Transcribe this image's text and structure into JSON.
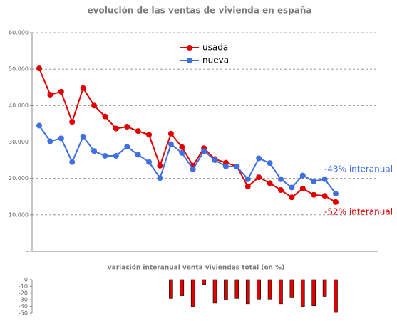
{
  "chart_data": [
    {
      "type": "line",
      "title": "evolución de las ventas de vivienda en españa",
      "categories": [
        null,
        null,
        null,
        null,
        null,
        null,
        null,
        null,
        null,
        null,
        null,
        null,
        null,
        null,
        null,
        null,
        null,
        null,
        null,
        null,
        null,
        null,
        null,
        null,
        null,
        null,
        null,
        null
      ],
      "series": [
        {
          "name": "usada",
          "color": "#e00000",
          "values": [
            50200,
            43000,
            43800,
            35500,
            44800,
            40000,
            37000,
            33700,
            34200,
            33000,
            32000,
            23500,
            32300,
            28600,
            23500,
            28300,
            25300,
            24300,
            23300,
            17800,
            20300,
            18700,
            16800,
            14800,
            17200,
            15500,
            15200,
            13500
          ]
        },
        {
          "name": "nueva",
          "color": "#3f6fe0",
          "values": [
            34500,
            30200,
            31000,
            24500,
            31500,
            27500,
            26200,
            26200,
            28700,
            26500,
            24500,
            20100,
            29400,
            27000,
            22500,
            27500,
            25000,
            23300,
            23200,
            19800,
            25500,
            24200,
            19800,
            17500,
            20800,
            19200,
            19800,
            15800
          ]
        }
      ],
      "ylim": [
        0,
        60000
      ],
      "yticks": [
        {
          "value": 0,
          "label": "-"
        },
        {
          "value": 10000,
          "label": "10.000"
        },
        {
          "value": 20000,
          "label": "20.000"
        },
        {
          "value": 30000,
          "label": "30.000"
        },
        {
          "value": 40000,
          "label": "40.000"
        },
        {
          "value": 50000,
          "label": "50.000"
        },
        {
          "value": 60000,
          "label": "60.000"
        }
      ],
      "grid": true,
      "annotations": [
        {
          "text": "-43% interanual",
          "color": "#3f6fe0"
        },
        {
          "text": "-52% interanual",
          "color": "#e00000"
        }
      ]
    },
    {
      "type": "bar",
      "title": "variación interanual venta viviendas total (en %)",
      "categories": [
        null,
        null,
        null,
        null,
        null,
        null,
        null,
        null,
        null,
        null,
        null,
        null,
        null,
        null,
        null,
        null,
        null,
        null,
        null,
        null,
        null,
        null,
        null,
        null,
        null,
        null,
        null,
        null
      ],
      "values": [
        null,
        null,
        null,
        null,
        null,
        null,
        null,
        null,
        null,
        null,
        null,
        null,
        -28,
        -24,
        -40,
        -7,
        -35,
        -30,
        -28,
        -36,
        -29,
        -29,
        -36,
        -26,
        -40,
        -39,
        -25,
        -49
      ],
      "color": "#e00000",
      "ylim": [
        -50,
        0
      ],
      "yticks": [
        0,
        -10,
        -20,
        -30,
        -40,
        -50
      ]
    }
  ]
}
